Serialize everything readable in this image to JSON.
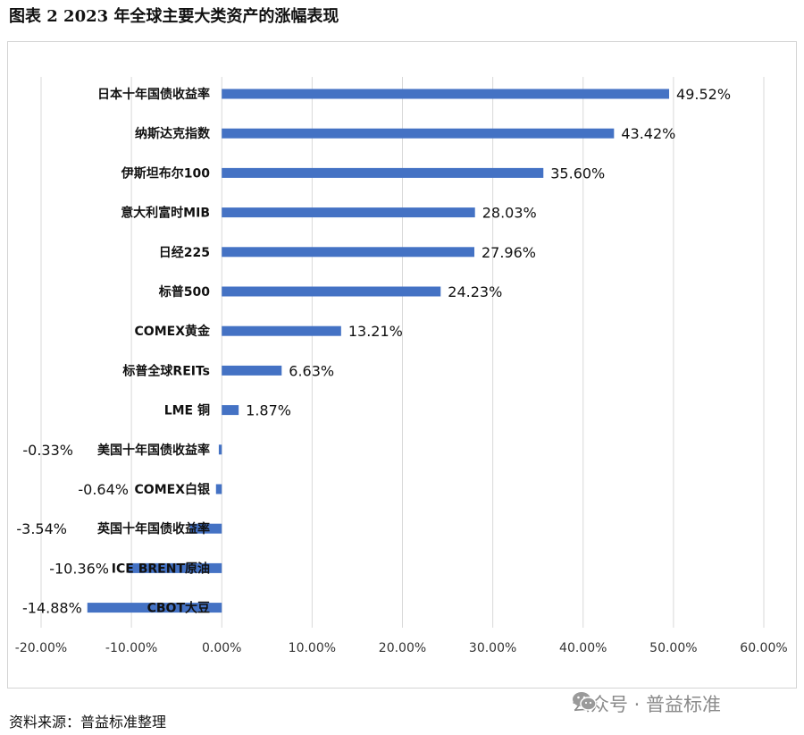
{
  "figure_title": "图表 2  2023 年全球主要大类资产的涨幅表现",
  "source_note": "资料来源：普益标准整理",
  "watermark": {
    "text": "公众号 · 普益标准",
    "icon": "wechat-icon"
  },
  "colors": {
    "bar": "#4472c4",
    "grid": "#d9d9d9",
    "text": "#111111",
    "watermark": "#8a8a8a"
  },
  "chart_data": {
    "type": "bar",
    "orientation": "horizontal",
    "title": "",
    "xlabel": "",
    "ylabel": "",
    "xlim": [
      -20,
      60
    ],
    "x_ticks": [
      -20,
      -10,
      0,
      10,
      20,
      30,
      40,
      50,
      60
    ],
    "x_tick_labels": [
      "-20.00%",
      "-10.00%",
      "0.00%",
      "10.00%",
      "20.00%",
      "30.00%",
      "40.00%",
      "50.00%",
      "60.00%"
    ],
    "grid": "vertical",
    "legend": "none",
    "categories": [
      "日本十年国债收益率",
      "纳斯达克指数",
      "伊斯坦布尔100",
      "意大利富时MIB",
      "日经225",
      "标普500",
      "COMEX黄金",
      "标普全球REITs",
      "LME 铜",
      "美国十年国债收益率",
      "COMEX白银",
      "英国十年国债收益率",
      "ICE BRENT原油",
      "CBOT大豆"
    ],
    "values": [
      49.52,
      43.42,
      35.6,
      28.03,
      27.96,
      24.23,
      13.21,
      6.63,
      1.87,
      -0.33,
      -0.64,
      -3.54,
      -10.36,
      -14.88
    ],
    "data_labels": [
      "49.52%",
      "43.42%",
      "35.60%",
      "28.03%",
      "27.96%",
      "24.23%",
      "13.21%",
      "6.63%",
      "1.87%",
      "-0.33%",
      "-0.64%",
      "-3.54%",
      "-10.36%",
      "-14.88%"
    ]
  }
}
